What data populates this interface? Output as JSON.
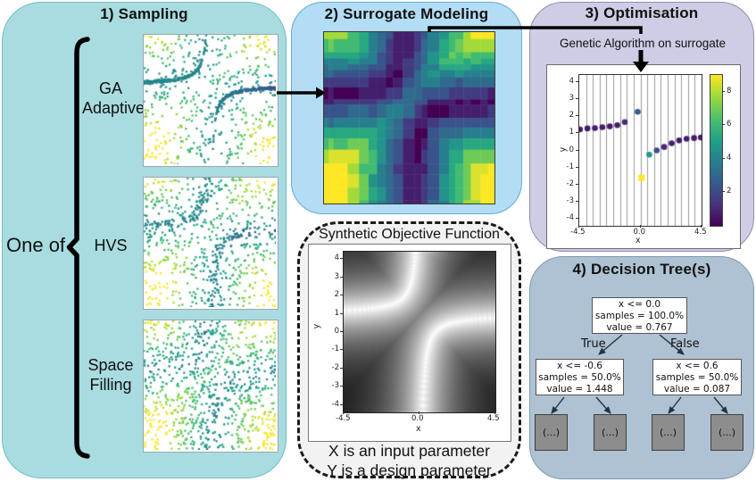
{
  "sampling": {
    "title": "1) Sampling",
    "one_of_label": "One of",
    "methods": [
      [
        "GA",
        "Adaptive"
      ],
      [
        "HVS"
      ],
      [
        "Space",
        "Filling"
      ]
    ]
  },
  "surrogate": {
    "title": "2) Surrogate Modeling"
  },
  "optimisation": {
    "title": "3) Optimisation",
    "annotation": "Genetic Algorithm on surrogate"
  },
  "decision_tree": {
    "title": "4) Decision Tree(s)",
    "true_label": "True",
    "false_label": "False",
    "root": [
      "x <= 0.0",
      "samples = 100.0%",
      "value = 0.767"
    ],
    "left": [
      "x <= -0.6",
      "samples = 50.0%",
      "value = 1.448"
    ],
    "right": [
      "x <= 0.6",
      "samples = 50.0%",
      "value = 0.087"
    ],
    "leaf_label": "(...)"
  },
  "objective": {
    "title": "Synthetic Objective Function",
    "captions": [
      "X is an input parameter",
      "Y is a design parameter"
    ]
  },
  "chart_data": [
    {
      "id": "optimisation-scatter",
      "type": "scatter",
      "xlabel": "x",
      "ylabel": "y",
      "xlim": [
        -4.5,
        4.5
      ],
      "ylim": [
        -4.4,
        4.4
      ],
      "xticks": [
        "-4.5",
        "0.0",
        "4.5"
      ],
      "yticks": [
        4,
        3,
        2,
        1,
        0,
        -1,
        -2,
        -3,
        -4
      ],
      "grid": "vertical",
      "n_gridlines": 17,
      "colorbar": {
        "colormap": "viridis",
        "range": [
          0,
          9
        ],
        "ticks": [
          2,
          4,
          6,
          8
        ]
      },
      "points": [
        {
          "x": -4.45,
          "y": 1.22,
          "v": 0.7
        },
        {
          "x": -3.9,
          "y": 1.28,
          "v": 0.7
        },
        {
          "x": -3.35,
          "y": 1.3,
          "v": 0.7
        },
        {
          "x": -2.8,
          "y": 1.35,
          "v": 0.7
        },
        {
          "x": -2.25,
          "y": 1.4,
          "v": 0.7
        },
        {
          "x": -1.7,
          "y": 1.47,
          "v": 0.8
        },
        {
          "x": -1.15,
          "y": 1.65,
          "v": 1.1
        },
        {
          "x": -0.2,
          "y": 2.25,
          "v": 2.6
        },
        {
          "x": 0.08,
          "y": -1.6,
          "v": 9.0,
          "marker": "square"
        },
        {
          "x": 0.65,
          "y": -0.25,
          "v": 4.8
        },
        {
          "x": 1.2,
          "y": 0.0,
          "v": 2.2
        },
        {
          "x": 1.75,
          "y": 0.2,
          "v": 1.1
        },
        {
          "x": 2.3,
          "y": 0.42,
          "v": 0.8
        },
        {
          "x": 2.85,
          "y": 0.58,
          "v": 0.7
        },
        {
          "x": 3.4,
          "y": 0.68,
          "v": 0.7
        },
        {
          "x": 3.95,
          "y": 0.72,
          "v": 0.7
        },
        {
          "x": 4.45,
          "y": 0.75,
          "v": 0.7
        }
      ]
    },
    {
      "id": "surrogate-heatmap",
      "type": "heatmap",
      "colormap": "viridis",
      "xlim": [
        -4.5,
        4.5
      ],
      "ylim": [
        -4.5,
        4.5
      ],
      "value_range": [
        0.25,
        9.3
      ],
      "description": "blocky tree-surrogate of objective; low (dark) valley along curve y = 1 - 0.9/x, high (yellow) corners",
      "curve": "y = 1 - 0.9/x",
      "seed": 7
    },
    {
      "id": "objective-heatmap",
      "type": "heatmap",
      "colormap": "gray",
      "xlabel": "x",
      "ylabel": "y",
      "xlim": [
        -4.5,
        4.5
      ],
      "ylim": [
        -4.4,
        4.4
      ],
      "xticks": [
        "-4.5",
        "0.0",
        "4.5"
      ],
      "yticks": [
        4,
        3,
        2,
        1,
        0,
        -1,
        -2,
        -3,
        -4
      ],
      "description": "bright ridge along curve y = 1 - 0.9/x with vertical asymptote at x = 0, dark elsewhere",
      "curve": "y = 1 - 0.9/x"
    },
    {
      "id": "sampling-scatters",
      "type": "scatter",
      "colormap": "viridis",
      "xlim": [
        -4.5,
        4.5
      ],
      "ylim": [
        -4.5,
        4.5
      ],
      "curve": "y = 1 - 0.9/x",
      "series": [
        {
          "name": "GA Adaptive",
          "n_uniform": 520,
          "n_curve": 430,
          "curve_sigma": 0.13,
          "seed": 11
        },
        {
          "name": "HVS",
          "n_uniform": 600,
          "n_curve": 280,
          "curve_sigma": 0.38,
          "seed": 23
        },
        {
          "name": "Space Filling",
          "n_uniform": 880,
          "n_curve": 0,
          "curve_sigma": 0,
          "seed": 37
        }
      ]
    }
  ]
}
